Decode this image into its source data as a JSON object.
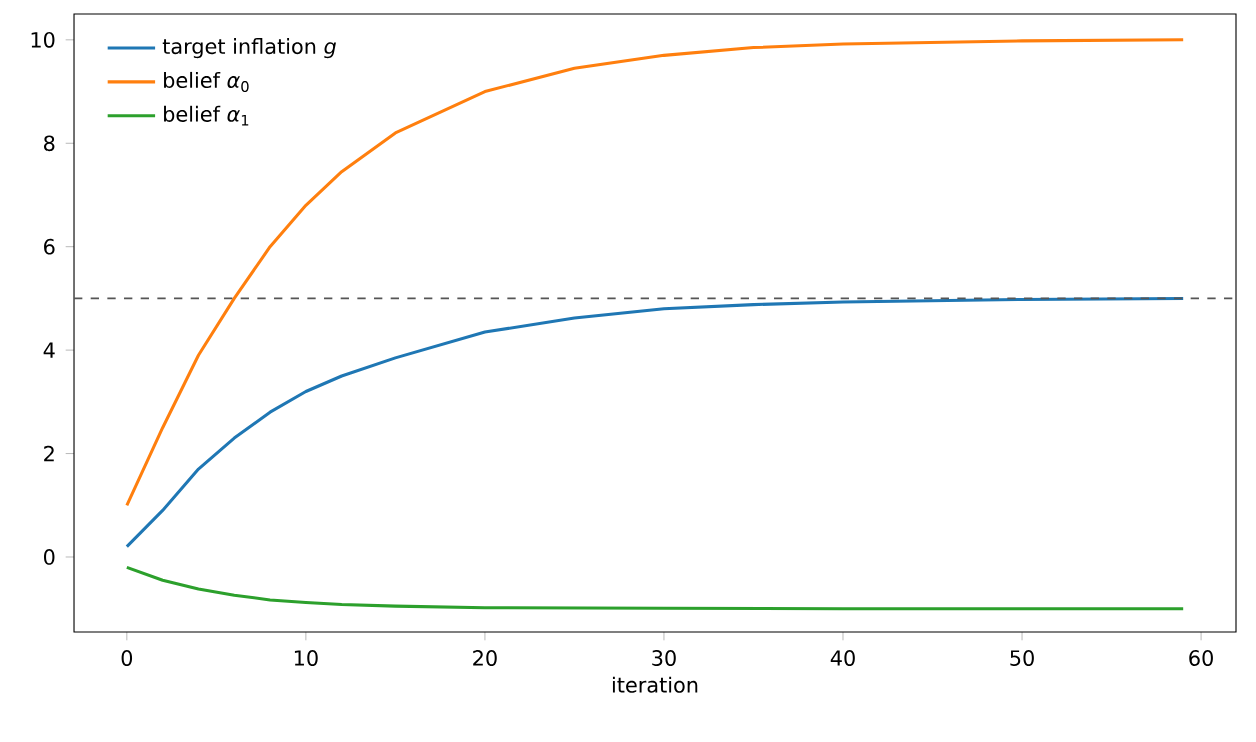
{
  "chart_data": {
    "type": "line",
    "xlabel": "iteration",
    "xlim": [
      -2.95,
      61.95
    ],
    "ylim": [
      -1.45,
      10.5
    ],
    "xticks": [
      0,
      10,
      20,
      30,
      40,
      50,
      60
    ],
    "yticks": [
      0,
      2,
      4,
      6,
      8,
      10
    ],
    "legend": "top left",
    "grid": false,
    "marker": "none",
    "line_style": "solid",
    "ref_lines": [
      {
        "axis": "y",
        "value": 5,
        "color": "#555555",
        "line_style": "dashed"
      }
    ],
    "series": [
      {
        "name": "target inflation *g*",
        "color": "#1f77b4",
        "x": [
          0,
          2,
          4,
          6,
          8,
          10,
          12,
          15,
          20,
          25,
          30,
          35,
          40,
          50,
          59
        ],
        "values": [
          0.2,
          0.9,
          1.7,
          2.3,
          2.8,
          3.2,
          3.5,
          3.85,
          4.35,
          4.62,
          4.8,
          4.88,
          4.93,
          4.98,
          5.0
        ]
      },
      {
        "name": "belief *α*$_{0}$",
        "color": "#ff7f0e",
        "x": [
          0,
          2,
          4,
          6,
          8,
          10,
          12,
          15,
          20,
          25,
          30,
          35,
          40,
          50,
          59
        ],
        "values": [
          1.0,
          2.5,
          3.9,
          5.0,
          6.0,
          6.8,
          7.45,
          8.2,
          9.0,
          9.45,
          9.7,
          9.85,
          9.92,
          9.98,
          10.0
        ]
      },
      {
        "name": "belief *α*$_{1}$",
        "color": "#2ca02c",
        "x": [
          0,
          2,
          4,
          6,
          8,
          10,
          12,
          15,
          20,
          30,
          40,
          59
        ],
        "values": [
          -0.2,
          -0.45,
          -0.62,
          -0.74,
          -0.83,
          -0.88,
          -0.92,
          -0.95,
          -0.98,
          -0.99,
          -1.0,
          -1.0
        ]
      }
    ]
  }
}
